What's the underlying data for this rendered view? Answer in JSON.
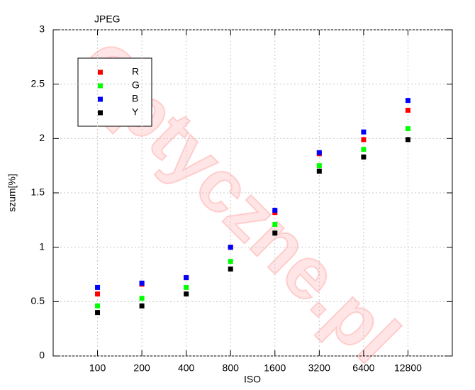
{
  "chart_data": {
    "type": "scatter",
    "title": "JPEG",
    "x_label": "ISO",
    "y_label": "szum[%]",
    "watermark": "Optyczne.pl",
    "x": [
      100,
      200,
      400,
      800,
      1600,
      3200,
      6400,
      12800
    ],
    "xscale": "log",
    "xlim": [
      50,
      25600
    ],
    "xticks": [
      100,
      200,
      400,
      800,
      1600,
      3200,
      6400,
      12800
    ],
    "ylim": [
      0,
      3
    ],
    "yticks": [
      0,
      0.5,
      1,
      1.5,
      2,
      2.5,
      3
    ],
    "grid": true,
    "legend": "upper left",
    "series": [
      {
        "name": "R",
        "color": "#ff0000",
        "values": [
          0.57,
          0.66,
          0.72,
          1.0,
          1.32,
          1.86,
          1.99,
          2.26
        ]
      },
      {
        "name": "G",
        "color": "#00ff00",
        "values": [
          0.46,
          0.53,
          0.63,
          0.87,
          1.21,
          1.75,
          1.9,
          2.09
        ]
      },
      {
        "name": "B",
        "color": "#0000ff",
        "values": [
          0.63,
          0.67,
          0.72,
          1.0,
          1.34,
          1.87,
          2.06,
          2.35
        ]
      },
      {
        "name": "Y",
        "color": "#000000",
        "values": [
          0.4,
          0.46,
          0.57,
          0.8,
          1.13,
          1.7,
          1.83,
          1.99
        ]
      }
    ]
  }
}
